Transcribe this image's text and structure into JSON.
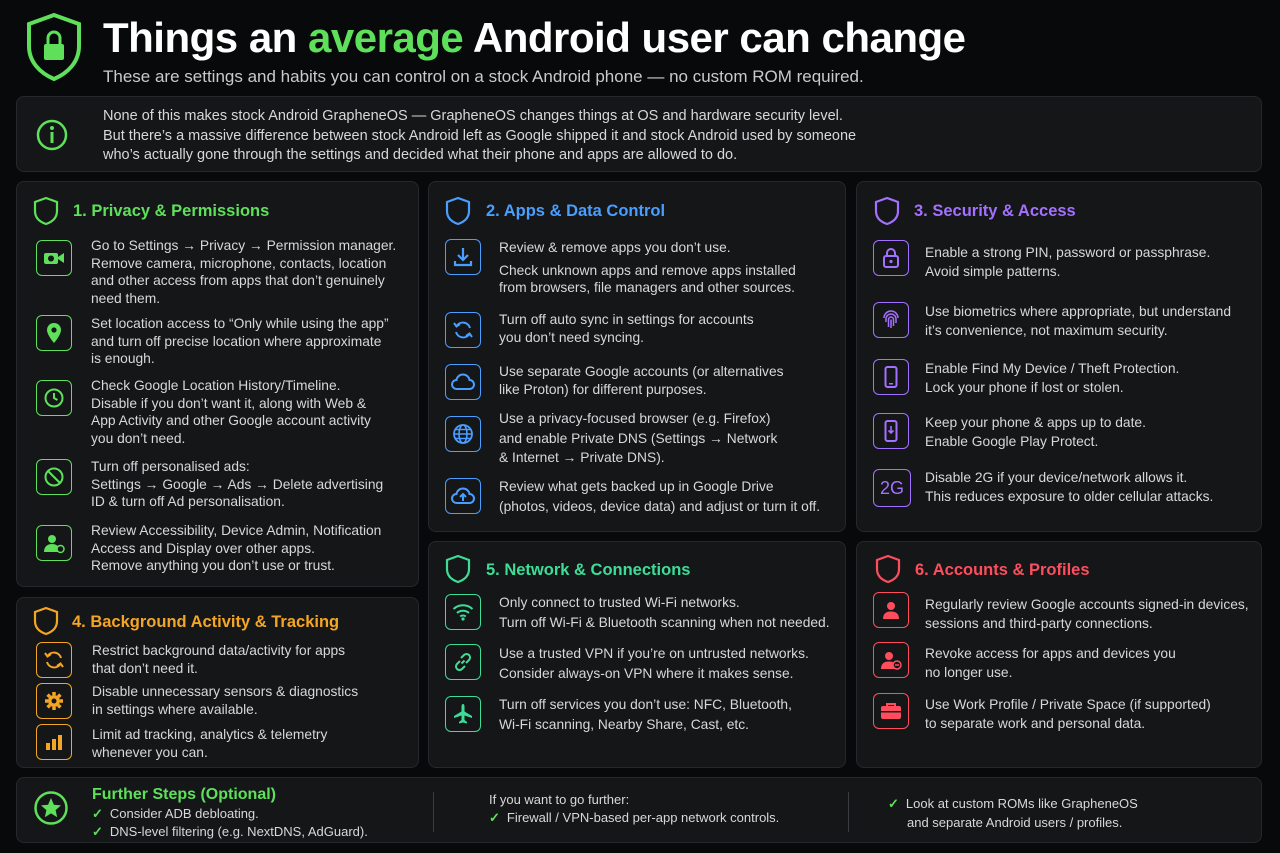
{
  "header": {
    "title_part1": "Things an ",
    "title_accent": "average",
    "title_part2": " Android user can change",
    "subtitle": "These are settings and habits you can control on a stock Android phone — no custom ROM required.",
    "logo_icon": "shield-lock-icon"
  },
  "info": {
    "icon": "info-icon",
    "lines": [
      "None of this makes stock Android GrapheneOS — GrapheneOS changes things at OS and hardware security level.",
      "But there’s a massive difference between stock Android left as Google shipped it and stock Android used by someone",
      "who’s actually gone through the settings and decided what their phone and apps are allowed to do."
    ]
  },
  "colors": {
    "green": "#5ee05a",
    "blue": "#4a9eff",
    "purple": "#a470ff",
    "orange": "#f5a524",
    "teal": "#3ddc97",
    "red": "#ff4d5e"
  },
  "sections": [
    {
      "title": "1. Privacy & Permissions",
      "items": [
        {
          "icon": "camera-icon",
          "lines": [
            "Go to Settings → Privacy → Permission manager.",
            "Remove camera, microphone, contacts, location",
            "and other access from apps that don’t genuinely",
            "need them."
          ]
        },
        {
          "icon": "location-pin-icon",
          "lines": [
            "Set location access to “Only while using the app”",
            "and turn off precise location where approximate",
            "is enough."
          ]
        },
        {
          "icon": "clock-icon",
          "lines": [
            "Check Google Location History/Timeline.",
            "Disable if you don’t want it, along with Web &",
            "App Activity and other Google account activity",
            "you don’t need."
          ]
        },
        {
          "icon": "no-ads-icon",
          "lines": [
            "Turn off personalised ads:",
            "Settings → Google → Ads → Delete advertising",
            "ID & turn off Ad personalisation."
          ]
        },
        {
          "icon": "user-settings-icon",
          "lines": [
            "Review Accessibility, Device Admin, Notification",
            "Access and Display over other apps.",
            "Remove anything you don’t use or trust."
          ]
        }
      ]
    },
    {
      "title": "2. Apps & Data Control",
      "items": [
        {
          "icon": "download-icon",
          "lines": [
            "Review & remove apps you don’t use.",
            "Check unknown apps and remove apps installed",
            "from browsers, file managers and other sources."
          ]
        },
        {
          "icon": "sync-icon",
          "lines": [
            "Turn off auto sync in settings for accounts",
            "you don’t need syncing."
          ]
        },
        {
          "icon": "cloud-icon",
          "lines": [
            "Use separate Google accounts (or alternatives",
            "like Proton) for different purposes."
          ]
        },
        {
          "icon": "globe-icon",
          "lines": [
            "Use a privacy-focused browser (e.g. Firefox)",
            "and enable Private DNS (Settings → Network",
            "& Internet → Private DNS)."
          ]
        },
        {
          "icon": "cloud-upload-icon",
          "lines": [
            "Review what gets backed up in Google Drive",
            "(photos, videos, device data) and adjust or turn it off."
          ]
        }
      ]
    },
    {
      "title": "3. Security & Access",
      "items": [
        {
          "icon": "lock-icon",
          "lines": [
            "Enable a strong PIN, password or passphrase.",
            "Avoid simple patterns."
          ]
        },
        {
          "icon": "fingerprint-icon",
          "lines": [
            "Use biometrics where appropriate, but understand",
            "it’s convenience, not maximum security."
          ]
        },
        {
          "icon": "phone-icon",
          "lines": [
            "Enable Find My Device / Theft Protection.",
            "Lock your phone if lost or stolen."
          ]
        },
        {
          "icon": "phone-update-icon",
          "lines": [
            "Keep your phone & apps up to date.",
            "Enable Google Play Protect."
          ]
        },
        {
          "icon": "2g-icon",
          "icon_text": "2G",
          "lines": [
            "Disable 2G if your device/network allows it.",
            "This reduces exposure to older cellular attacks."
          ]
        }
      ]
    },
    {
      "title": "4. Background Activity & Tracking",
      "items": [
        {
          "icon": "refresh-icon",
          "lines": [
            "Restrict background data/activity for apps",
            "that don’t need it."
          ]
        },
        {
          "icon": "gear-icon",
          "lines": [
            "Disable unnecessary sensors & diagnostics",
            "in settings where available."
          ]
        },
        {
          "icon": "bar-chart-icon",
          "lines": [
            "Limit ad tracking, analytics & telemetry",
            "whenever you can."
          ]
        }
      ]
    },
    {
      "title": "5. Network & Connections",
      "items": [
        {
          "icon": "wifi-icon",
          "lines": [
            "Only connect to trusted Wi-Fi networks.",
            "Turn off Wi-Fi & Bluetooth scanning when not needed."
          ]
        },
        {
          "icon": "link-icon",
          "lines": [
            "Use a trusted VPN if you’re on untrusted networks.",
            "Consider always-on VPN where it makes sense."
          ]
        },
        {
          "icon": "airplane-icon",
          "lines": [
            "Turn off services you don’t use: NFC, Bluetooth,",
            "Wi-Fi scanning, Nearby Share, Cast, etc."
          ]
        }
      ]
    },
    {
      "title": "6. Accounts & Profiles",
      "items": [
        {
          "icon": "user-icon",
          "lines": [
            "Regularly review Google accounts signed-in devices,",
            "sessions and third-party connections."
          ]
        },
        {
          "icon": "user-remove-icon",
          "lines": [
            "Revoke access for apps and devices you",
            "no longer use."
          ]
        },
        {
          "icon": "briefcase-icon",
          "lines": [
            "Use Work Profile / Private Space (if supported)",
            "to separate work and personal data."
          ]
        }
      ]
    }
  ],
  "further": {
    "icon": "star-icon",
    "title": "Further Steps (Optional)",
    "col1": [
      "Consider ADB debloating.",
      "DNS-level filtering (e.g. NextDNS, AdGuard)."
    ],
    "col2_intro": "If you want to go further:",
    "col2": [
      "Firewall / VPN-based per-app network controls."
    ],
    "col3": [
      "Look at custom ROMs like GrapheneOS",
      "and separate Android users / profiles."
    ],
    "check": "✓"
  }
}
